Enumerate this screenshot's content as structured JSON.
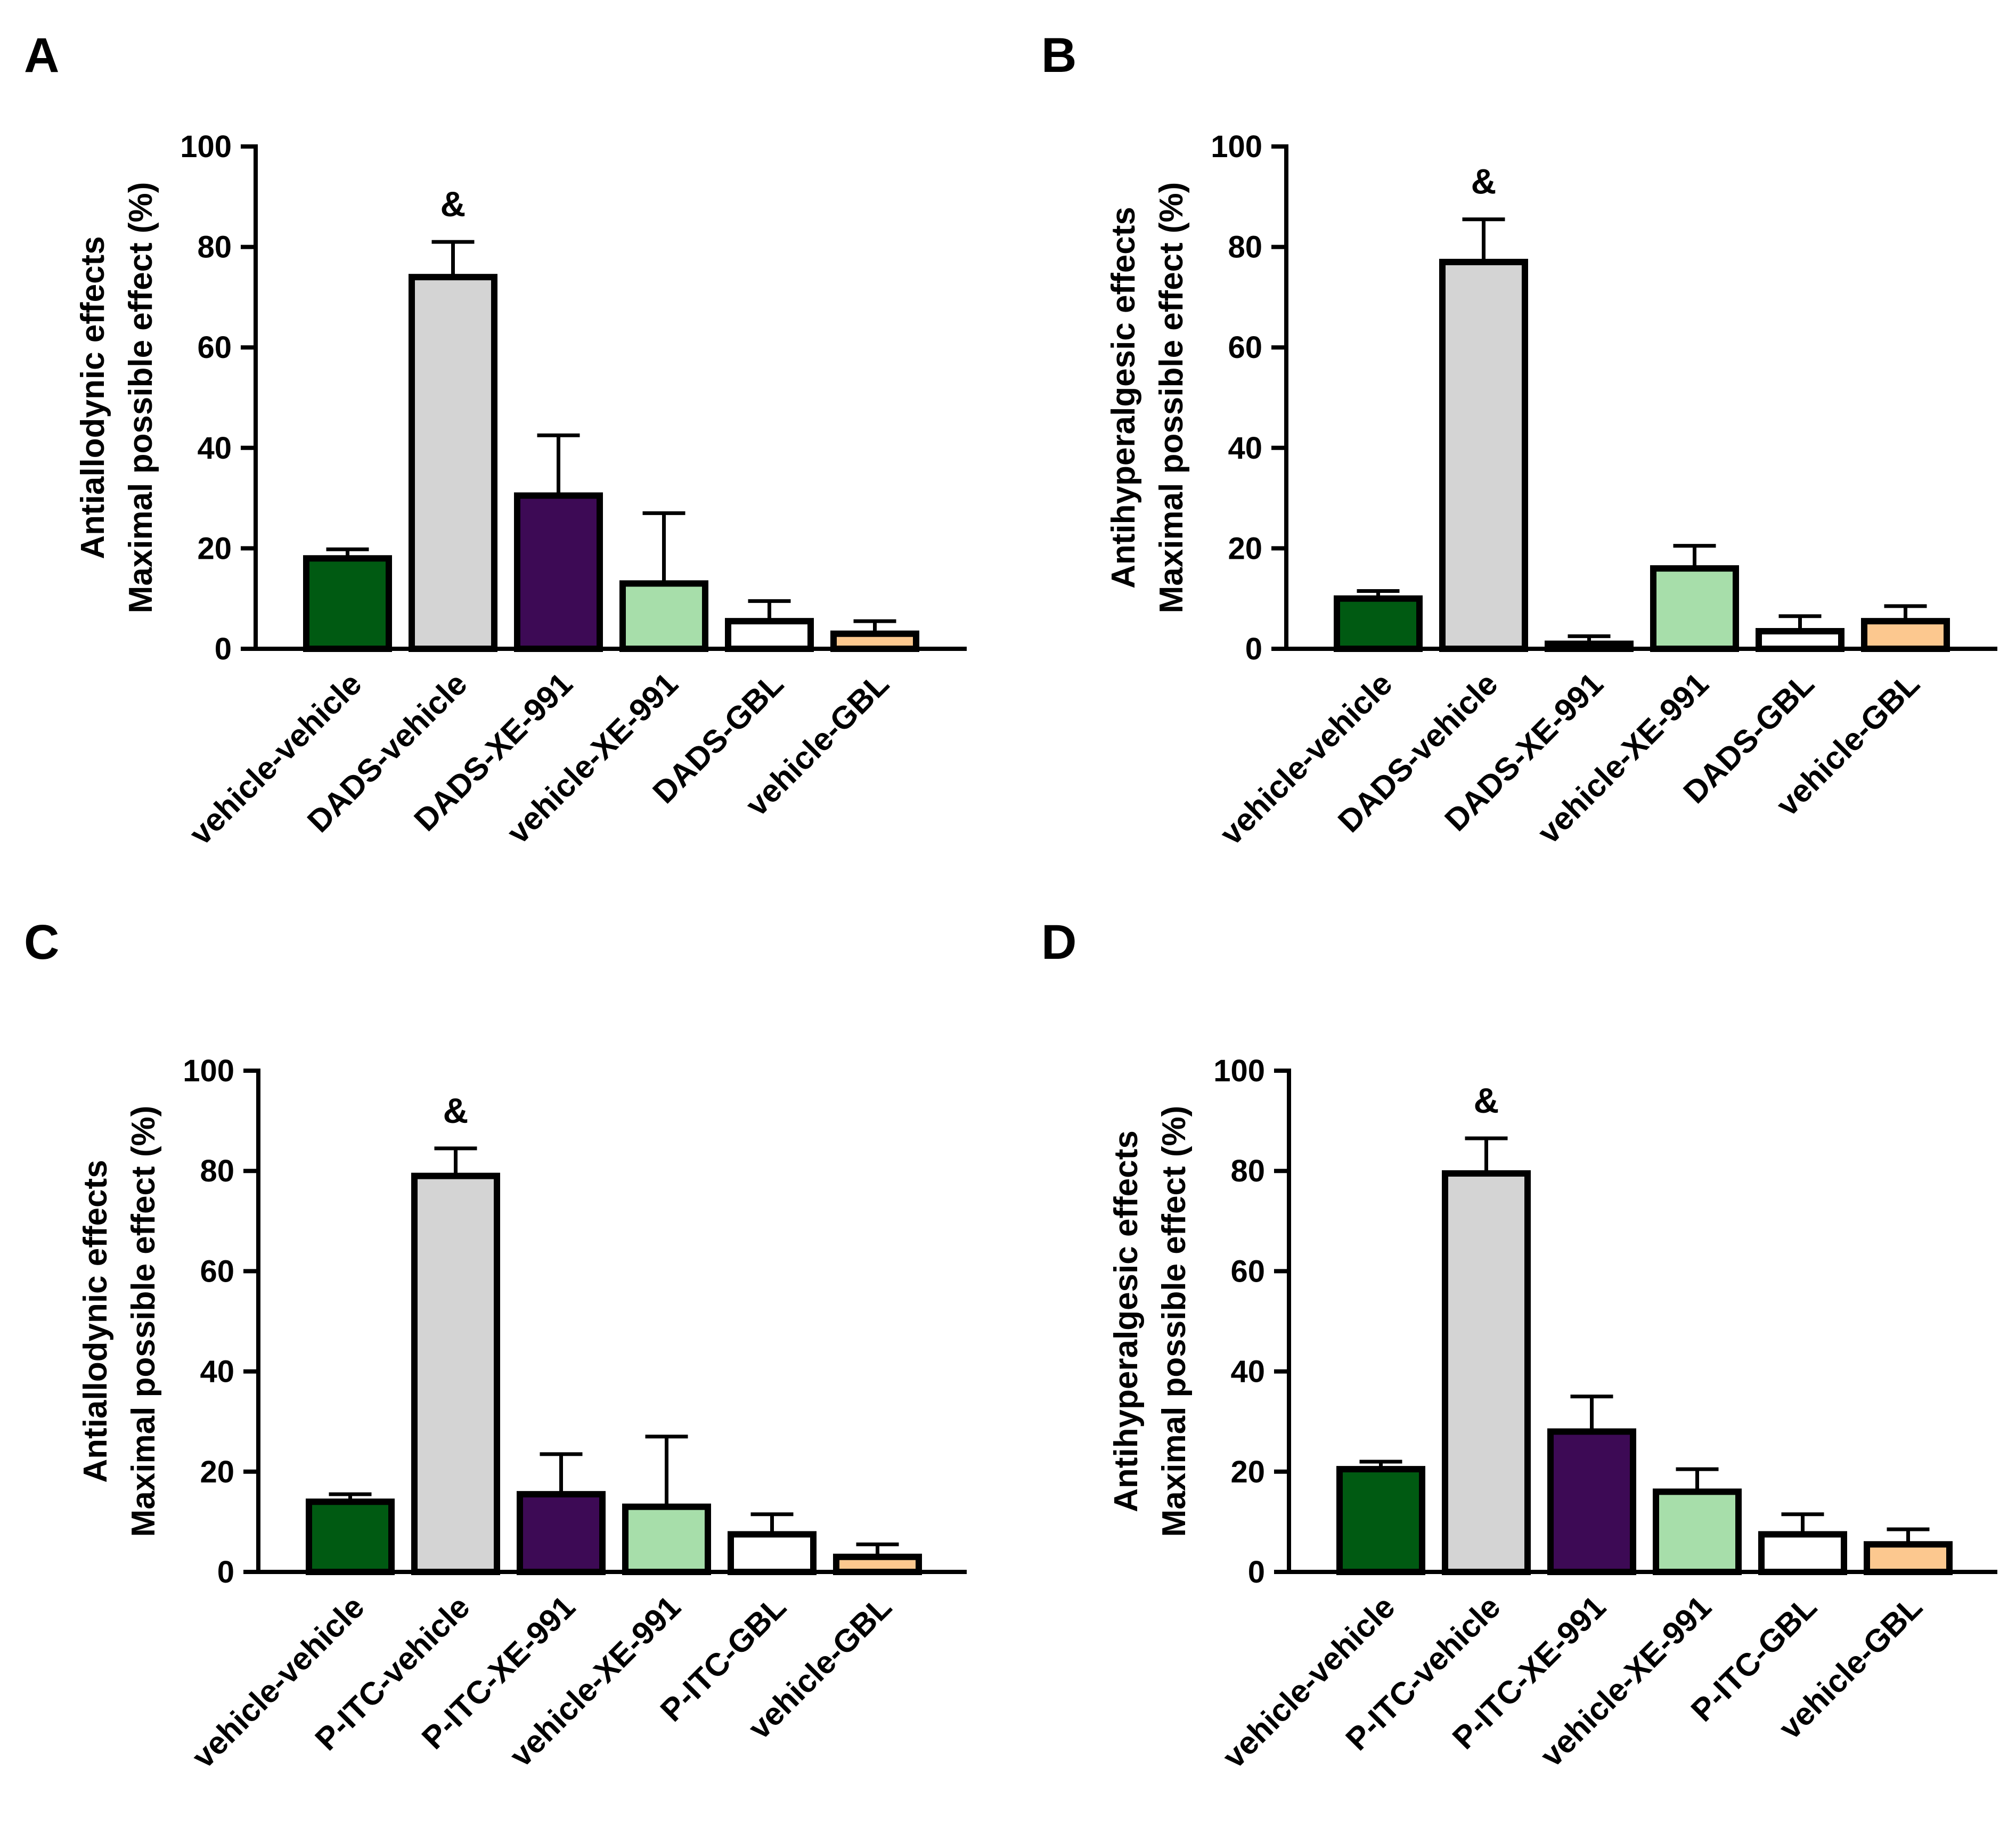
{
  "colors": {
    "vehicle-vehicle": "#005a12",
    "agent-vehicle": "#d4d4d4",
    "agent-XE-991": "#3d0a55",
    "vehicle-XE-991": "#a7deaa",
    "agent-GBL": "#ffffff",
    "vehicle-GBL": "#fcc88f"
  },
  "chart_data": [
    {
      "panel": "A",
      "type": "bar",
      "ylabel_line1": "Antiallodynic effects",
      "ylabel_line2": "Maximal possible effect (%)",
      "ylim": [
        0,
        100
      ],
      "yticks": [
        "0",
        "20",
        "40",
        "60",
        "80",
        "100"
      ],
      "categories": [
        "vehicle-vehicle",
        "DADS-vehicle",
        "DADS-XE-991",
        "vehicle-XE-991",
        "DADS-GBL",
        "vehicle-GBL"
      ],
      "values": [
        18,
        74,
        30.5,
        13,
        5.5,
        3
      ],
      "errors": [
        1.8,
        7,
        12,
        14,
        4,
        2.5
      ],
      "annotations": [
        {
          "index": 1,
          "text": "&"
        }
      ]
    },
    {
      "panel": "B",
      "type": "bar",
      "ylabel_line1": "Antihyperalgesic effects",
      "ylabel_line2": "Maximal possible effect (%)",
      "ylim": [
        0,
        100
      ],
      "yticks": [
        "0",
        "20",
        "40",
        "60",
        "80",
        "100"
      ],
      "categories": [
        "vehicle-vehicle",
        "DADS-vehicle",
        "DADS-XE-991",
        "vehicle-XE-991",
        "DADS-GBL",
        "vehicle-GBL"
      ],
      "values": [
        10,
        77,
        1,
        16,
        3.5,
        5.5
      ],
      "errors": [
        1.5,
        8.5,
        1.5,
        4.5,
        3,
        3
      ],
      "annotations": [
        {
          "index": 1,
          "text": "&"
        }
      ]
    },
    {
      "panel": "C",
      "type": "bar",
      "ylabel_line1": "Antiallodynic effects",
      "ylabel_line2": "Maximal possible effect (%)",
      "ylim": [
        0,
        100
      ],
      "yticks": [
        "0",
        "20",
        "40",
        "60",
        "80",
        "100"
      ],
      "categories": [
        "vehicle-vehicle",
        "P-ITC-vehicle",
        "P-ITC-XE-991",
        "vehicle-XE-991",
        "P-ITC-GBL",
        "vehicle-GBL"
      ],
      "values": [
        14,
        79,
        15.5,
        13,
        7.5,
        3
      ],
      "errors": [
        1.5,
        5.5,
        8,
        14,
        4,
        2.5
      ],
      "annotations": [
        {
          "index": 1,
          "text": "&"
        }
      ]
    },
    {
      "panel": "D",
      "type": "bar",
      "ylabel_line1": "Antihyperalgesic effects",
      "ylabel_line2": "Maximal possible effect (%)",
      "ylim": [
        0,
        100
      ],
      "yticks": [
        "0",
        "20",
        "40",
        "60",
        "80",
        "100"
      ],
      "categories": [
        "vehicle-vehicle",
        "P-ITC-vehicle",
        "P-ITC-XE-991",
        "vehicle-XE-991",
        "P-ITC-GBL",
        "vehicle-GBL"
      ],
      "values": [
        20.5,
        79.5,
        28,
        16,
        7.5,
        5.5
      ],
      "errors": [
        1.5,
        7,
        7,
        4.5,
        4,
        3
      ],
      "annotations": [
        {
          "index": 1,
          "text": "&"
        }
      ]
    }
  ]
}
